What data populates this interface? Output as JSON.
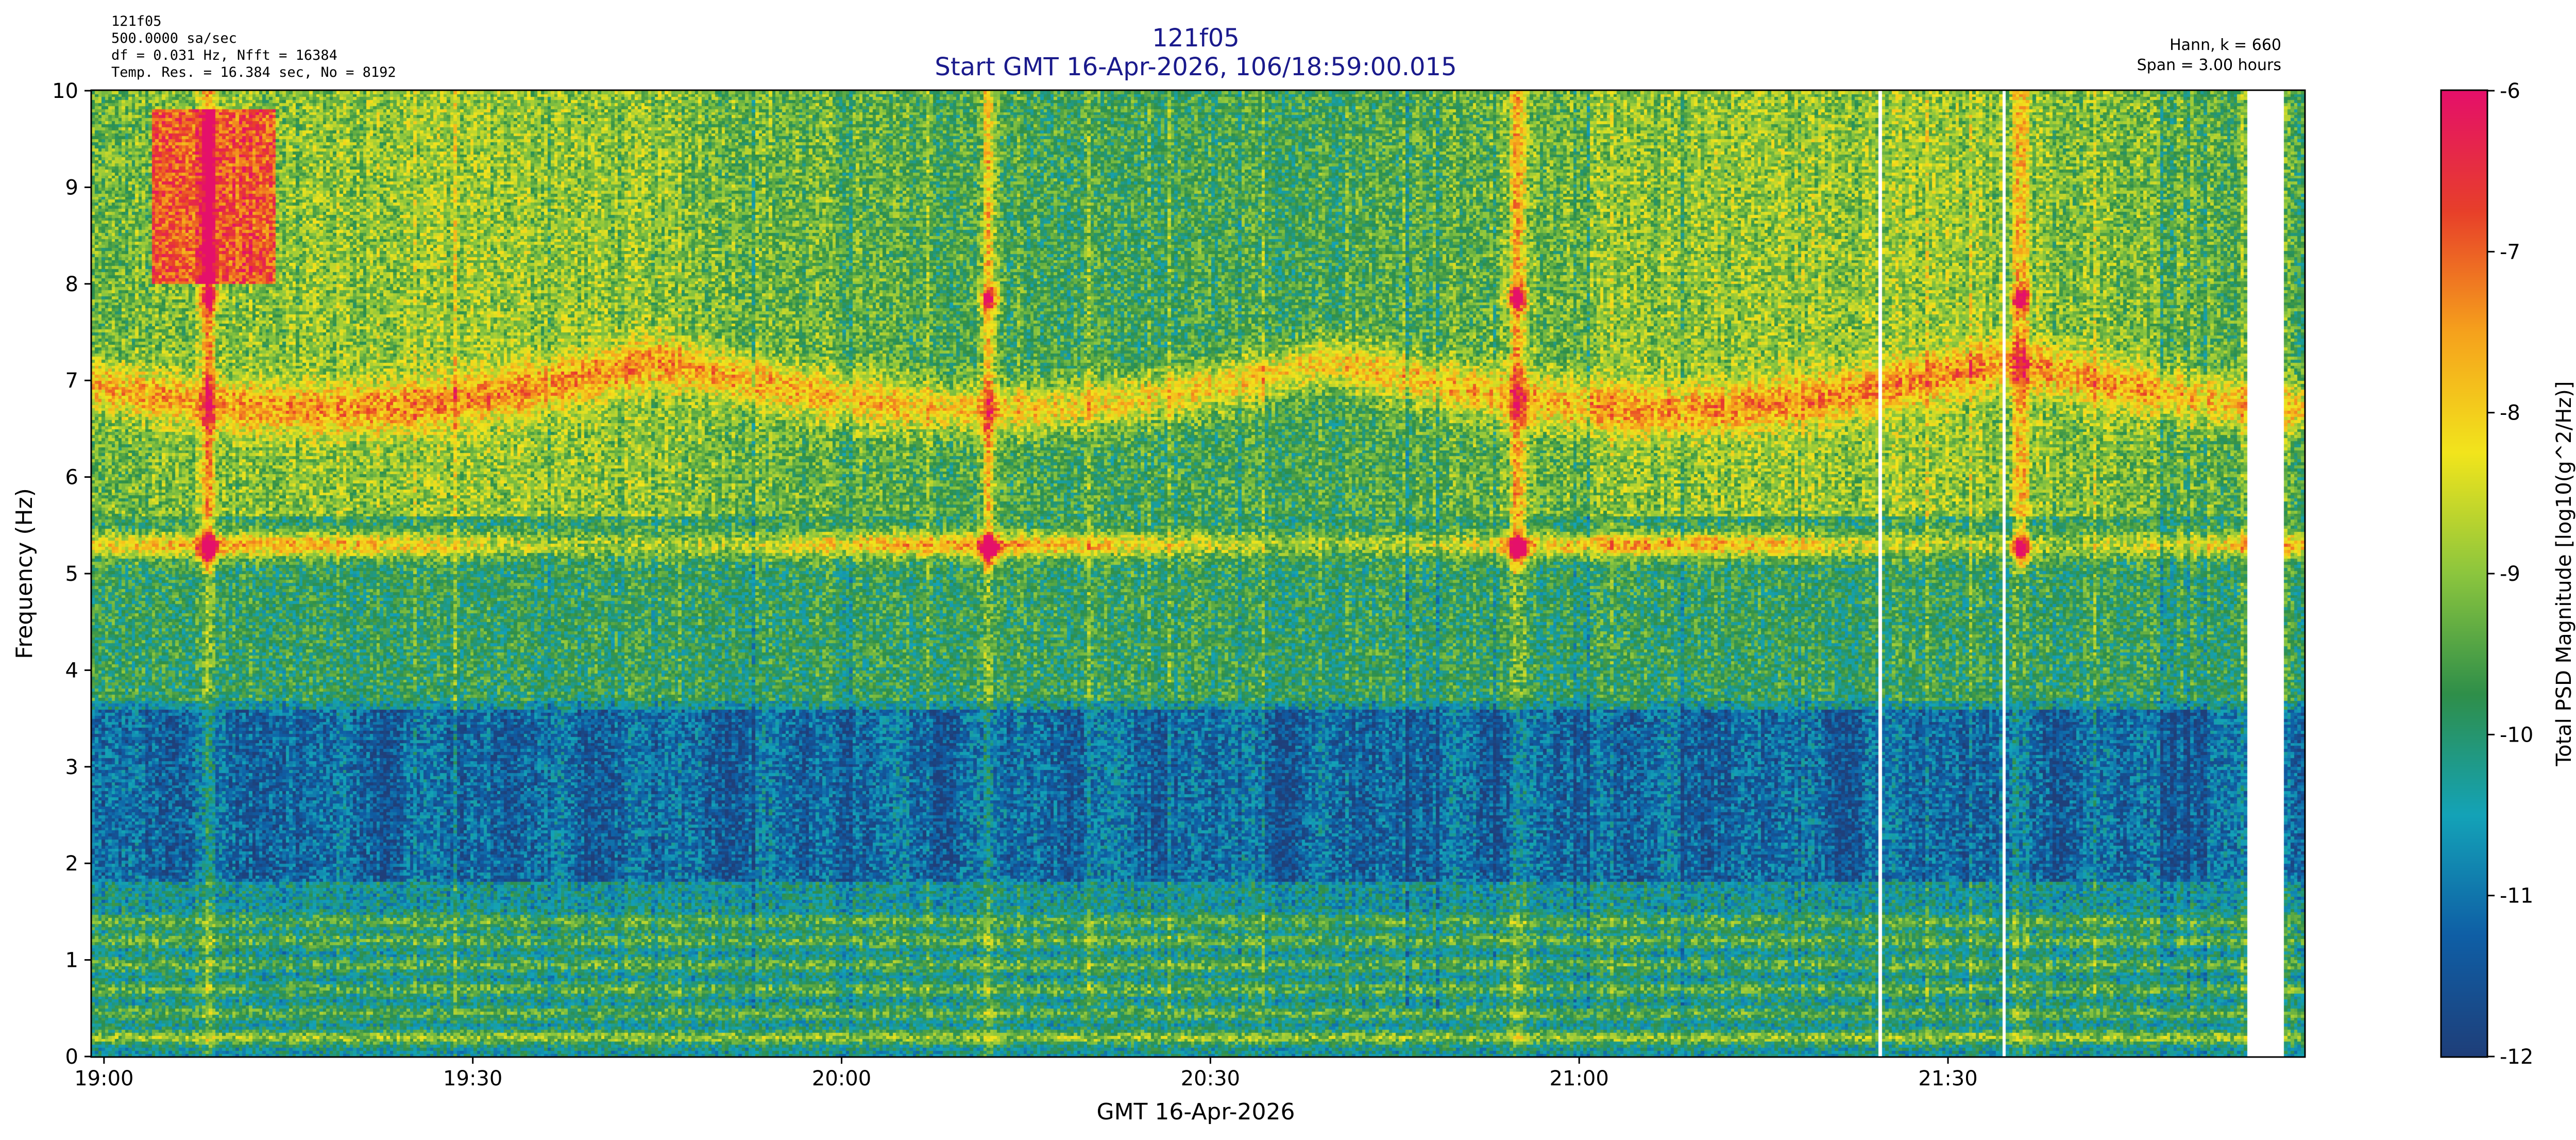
{
  "header": {
    "info_lines": [
      "121f05",
      "500.0000 sa/sec",
      "df = 0.031 Hz,  Nfft = 16384",
      "Temp. Res. = 16.384 sec, No = 8192"
    ],
    "title_line1": "121f05",
    "title_line2": "Start GMT 16-Apr-2026, 106/18:59:00.015",
    "right_lines": [
      "Hann, k = 660",
      "Span = 3.00 hours"
    ]
  },
  "colors": {
    "title": "#1a1a8c",
    "colormap": [
      "#1f3f7a",
      "#0f5fa6",
      "#14a3b8",
      "#2f8f4a",
      "#8cc63e",
      "#f2e51c",
      "#f6a21c",
      "#e8402a",
      "#e5106a"
    ]
  },
  "chart_data": {
    "type": "heatmap",
    "title": "121f05",
    "subtitle": "Start GMT 16-Apr-2026, 106/18:59:00.015",
    "xlabel": "GMT 16-Apr-2026",
    "ylabel": "Frequency (Hz)",
    "colorbar_label": "Total PSD Magnitude [log10(g^2/Hz)]",
    "x_ticks": [
      "19:00",
      "19:30",
      "20:00",
      "20:30",
      "21:00",
      "21:30"
    ],
    "x_tick_minutes": [
      0,
      30,
      60,
      90,
      120,
      150
    ],
    "xlim_minutes": [
      -1,
      179
    ],
    "y_ticks": [
      "0",
      "1",
      "2",
      "3",
      "4",
      "5",
      "6",
      "7",
      "8",
      "9",
      "10"
    ],
    "ylim": [
      0,
      10
    ],
    "clim": [
      -12,
      -6
    ],
    "colorbar_ticks": [
      "-12",
      "-11",
      "-10",
      "-9",
      "-8",
      "-7",
      "-6"
    ],
    "gaps_minutes": [
      [
        144.3,
        144.7
      ],
      [
        154.4,
        154.8
      ],
      [
        174.5,
        177.3
      ]
    ],
    "features": {
      "base_level": -10.4,
      "quiet_band_hz": [
        1.8,
        3.6
      ],
      "quiet_level": -11.2,
      "band_5_3hz": {
        "freq": 5.3,
        "level": -8.0
      },
      "band_7_2hz": {
        "freq": 7.2,
        "level": -8.2
      },
      "hot_region": {
        "t": [
          4,
          14
        ],
        "f": [
          8,
          9.8
        ],
        "level": -7.6
      },
      "transient_events_minutes": [
        8.5,
        72,
        115,
        156
      ],
      "low_harmonics_hz": [
        0.2,
        0.45,
        0.7,
        0.95,
        1.2,
        1.4
      ]
    }
  }
}
